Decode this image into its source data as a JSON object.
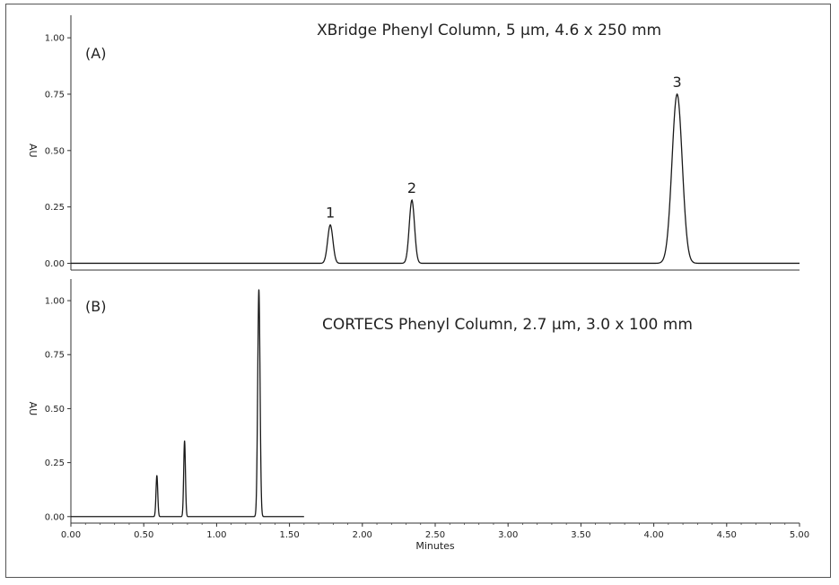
{
  "chart_data": [
    {
      "type": "line",
      "panel_label": "(A)",
      "title": "XBridge Phenyl Column, 5 µm, 4.6 x 250 mm",
      "ylabel": "AU",
      "xlabel": "",
      "xlim": [
        0.0,
        5.0
      ],
      "ylim": [
        -0.03,
        1.1
      ],
      "yticks": [
        "0.00",
        "0.25",
        "0.50",
        "0.75",
        "1.00"
      ],
      "xticks": [],
      "line_color": "#1a1a1a",
      "trace_end": 5.0,
      "peaks": [
        {
          "label": "1",
          "x": 1.78,
          "height": 0.17,
          "width": 0.018
        },
        {
          "label": "2",
          "x": 2.34,
          "height": 0.28,
          "width": 0.018
        },
        {
          "label": "3",
          "x": 4.16,
          "height": 0.75,
          "width": 0.035
        }
      ]
    },
    {
      "type": "line",
      "panel_label": "(B)",
      "title": "CORTECS Phenyl Column, 2.7 µm, 3.0 x 100 mm",
      "ylabel": "AU",
      "xlabel": "Minutes",
      "xlim": [
        0.0,
        5.0
      ],
      "ylim": [
        -0.03,
        1.1
      ],
      "yticks": [
        "0.00",
        "0.25",
        "0.50",
        "0.75",
        "1.00"
      ],
      "xticks": [
        "0.00",
        "0.50",
        "1.00",
        "1.50",
        "2.00",
        "2.50",
        "3.00",
        "3.50",
        "4.00",
        "4.50",
        "5.00"
      ],
      "line_color": "#1a1a1a",
      "trace_end": 1.6,
      "peaks": [
        {
          "label": "",
          "x": 0.59,
          "height": 0.19,
          "width": 0.006
        },
        {
          "label": "",
          "x": 0.78,
          "height": 0.35,
          "width": 0.006
        },
        {
          "label": "",
          "x": 1.29,
          "height": 1.05,
          "width": 0.008
        }
      ]
    }
  ]
}
